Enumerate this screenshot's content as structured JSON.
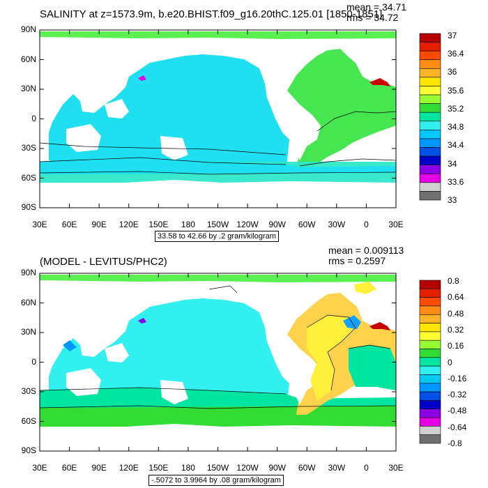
{
  "panels": [
    {
      "title": "SALINITY at z=1573.9m, b.e20.BHIST.f09_g16.20thC.125.01 [1850-1851]",
      "mean_text": "mean = 34.71",
      "rms_text": "rms = 34.72",
      "info_text": "33.58 to 42.66 by .2 gram/kilogram",
      "y_ticks": [
        "90N",
        "60N",
        "30N",
        "0",
        "30S",
        "60S",
        "90S"
      ],
      "x_ticks": [
        "30E",
        "60E",
        "90E",
        "120E",
        "150E",
        "180",
        "150W",
        "120W",
        "90W",
        "60W",
        "30W",
        "0",
        "30E"
      ],
      "colorbar_labels": [
        "37",
        "36.4",
        "36",
        "35.6",
        "35.2",
        "34.8",
        "34.4",
        "34",
        "33.6",
        "33"
      ],
      "colorbar_colors": [
        "#b40000",
        "#e61e00",
        "#ff4b00",
        "#ff8c14",
        "#ffb428",
        "#ffe600",
        "#ffff32",
        "#96ff32",
        "#32dc32",
        "#00e6a0",
        "#32f0f0",
        "#00c8ff",
        "#0096ff",
        "#0050e6",
        "#0000c8",
        "#8c00e6",
        "#e600e6",
        "#d0d0d0",
        "#707070"
      ]
    },
    {
      "title": "(MODEL - LEVITUS/PHC2)",
      "mean_text": "mean = 0.009113",
      "rms_text": "rms = 0.2597",
      "info_text": "-.5072 to 3.9964 by .08 gram/kilogram",
      "y_ticks": [
        "90N",
        "60N",
        "30N",
        "0",
        "30S",
        "60S",
        "90S"
      ],
      "x_ticks": [
        "30E",
        "60E",
        "90E",
        "120E",
        "150E",
        "180",
        "150W",
        "120W",
        "90W",
        "60W",
        "30W",
        "0",
        "30E"
      ],
      "colorbar_labels": [
        "0.8",
        "0.64",
        "0.48",
        "0.32",
        "0.16",
        "0",
        "-0.16",
        "-0.32",
        "-0.48",
        "-0.64",
        "-0.8"
      ],
      "colorbar_colors": [
        "#b40000",
        "#e61e00",
        "#ff4b00",
        "#ff8c14",
        "#ffb428",
        "#ffe600",
        "#ffff32",
        "#96ff32",
        "#32dc32",
        "#00e6a0",
        "#32f0f0",
        "#00c8ff",
        "#0096ff",
        "#0050e6",
        "#0000c8",
        "#8c00e6",
        "#e600e6",
        "#d0d0d0",
        "#707070"
      ]
    }
  ],
  "colors": {
    "pacific_indian": "#1ee0f0",
    "atlantic_main": "#46e650",
    "southern_band": "#2ee8c8",
    "arctic": "#5af050",
    "mediterranean": "#c80000",
    "anomaly_high": "#ffd24b",
    "anomaly_mid": "#fff03c",
    "anomaly_neg": "#14a0ff",
    "land": "#ffffff"
  }
}
